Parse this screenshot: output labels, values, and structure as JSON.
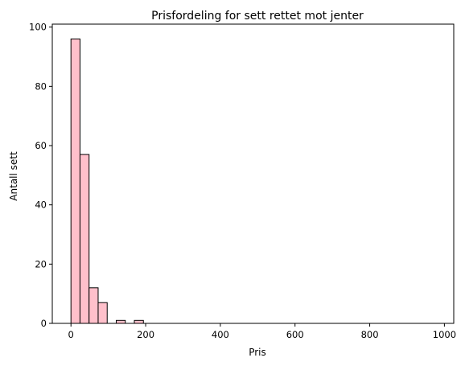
{
  "chart_data": {
    "type": "bar",
    "title": "Prisfordeling for sett rettet mot jenter",
    "xlabel": "Pris",
    "ylabel": "Antall sett",
    "xlim": [
      -50,
      1025
    ],
    "ylim": [
      0,
      101
    ],
    "xticks": [
      0,
      200,
      400,
      600,
      800,
      1000
    ],
    "yticks": [
      0,
      20,
      40,
      60,
      80,
      100
    ],
    "bin_edges": [
      0,
      24.25,
      48.5,
      72.75,
      97,
      121.25,
      145.5,
      169.75,
      194,
      218.25,
      242.5,
      266.75,
      291,
      315.25,
      339.5,
      363.75,
      388,
      412.25,
      436.5,
      460.75,
      485,
      509.25,
      533.5,
      557.75,
      582,
      606.25,
      630.5,
      654.75,
      679,
      703.25,
      727.5,
      751.75,
      776,
      800.25,
      824.5,
      848.75,
      873,
      897.25,
      921.5,
      945.75,
      970
    ],
    "counts": [
      96,
      57,
      12,
      7,
      0,
      1,
      0,
      1,
      0,
      0,
      0,
      0,
      0,
      0,
      0,
      0,
      0,
      0,
      0,
      0,
      0,
      0,
      0,
      0,
      0,
      0,
      0,
      0,
      0,
      0,
      0,
      0,
      0,
      0,
      0,
      0,
      0,
      0,
      0,
      0
    ],
    "bar_color": "#ffc0cb",
    "edge_color": "#000000",
    "grid": false,
    "legend": "none"
  }
}
